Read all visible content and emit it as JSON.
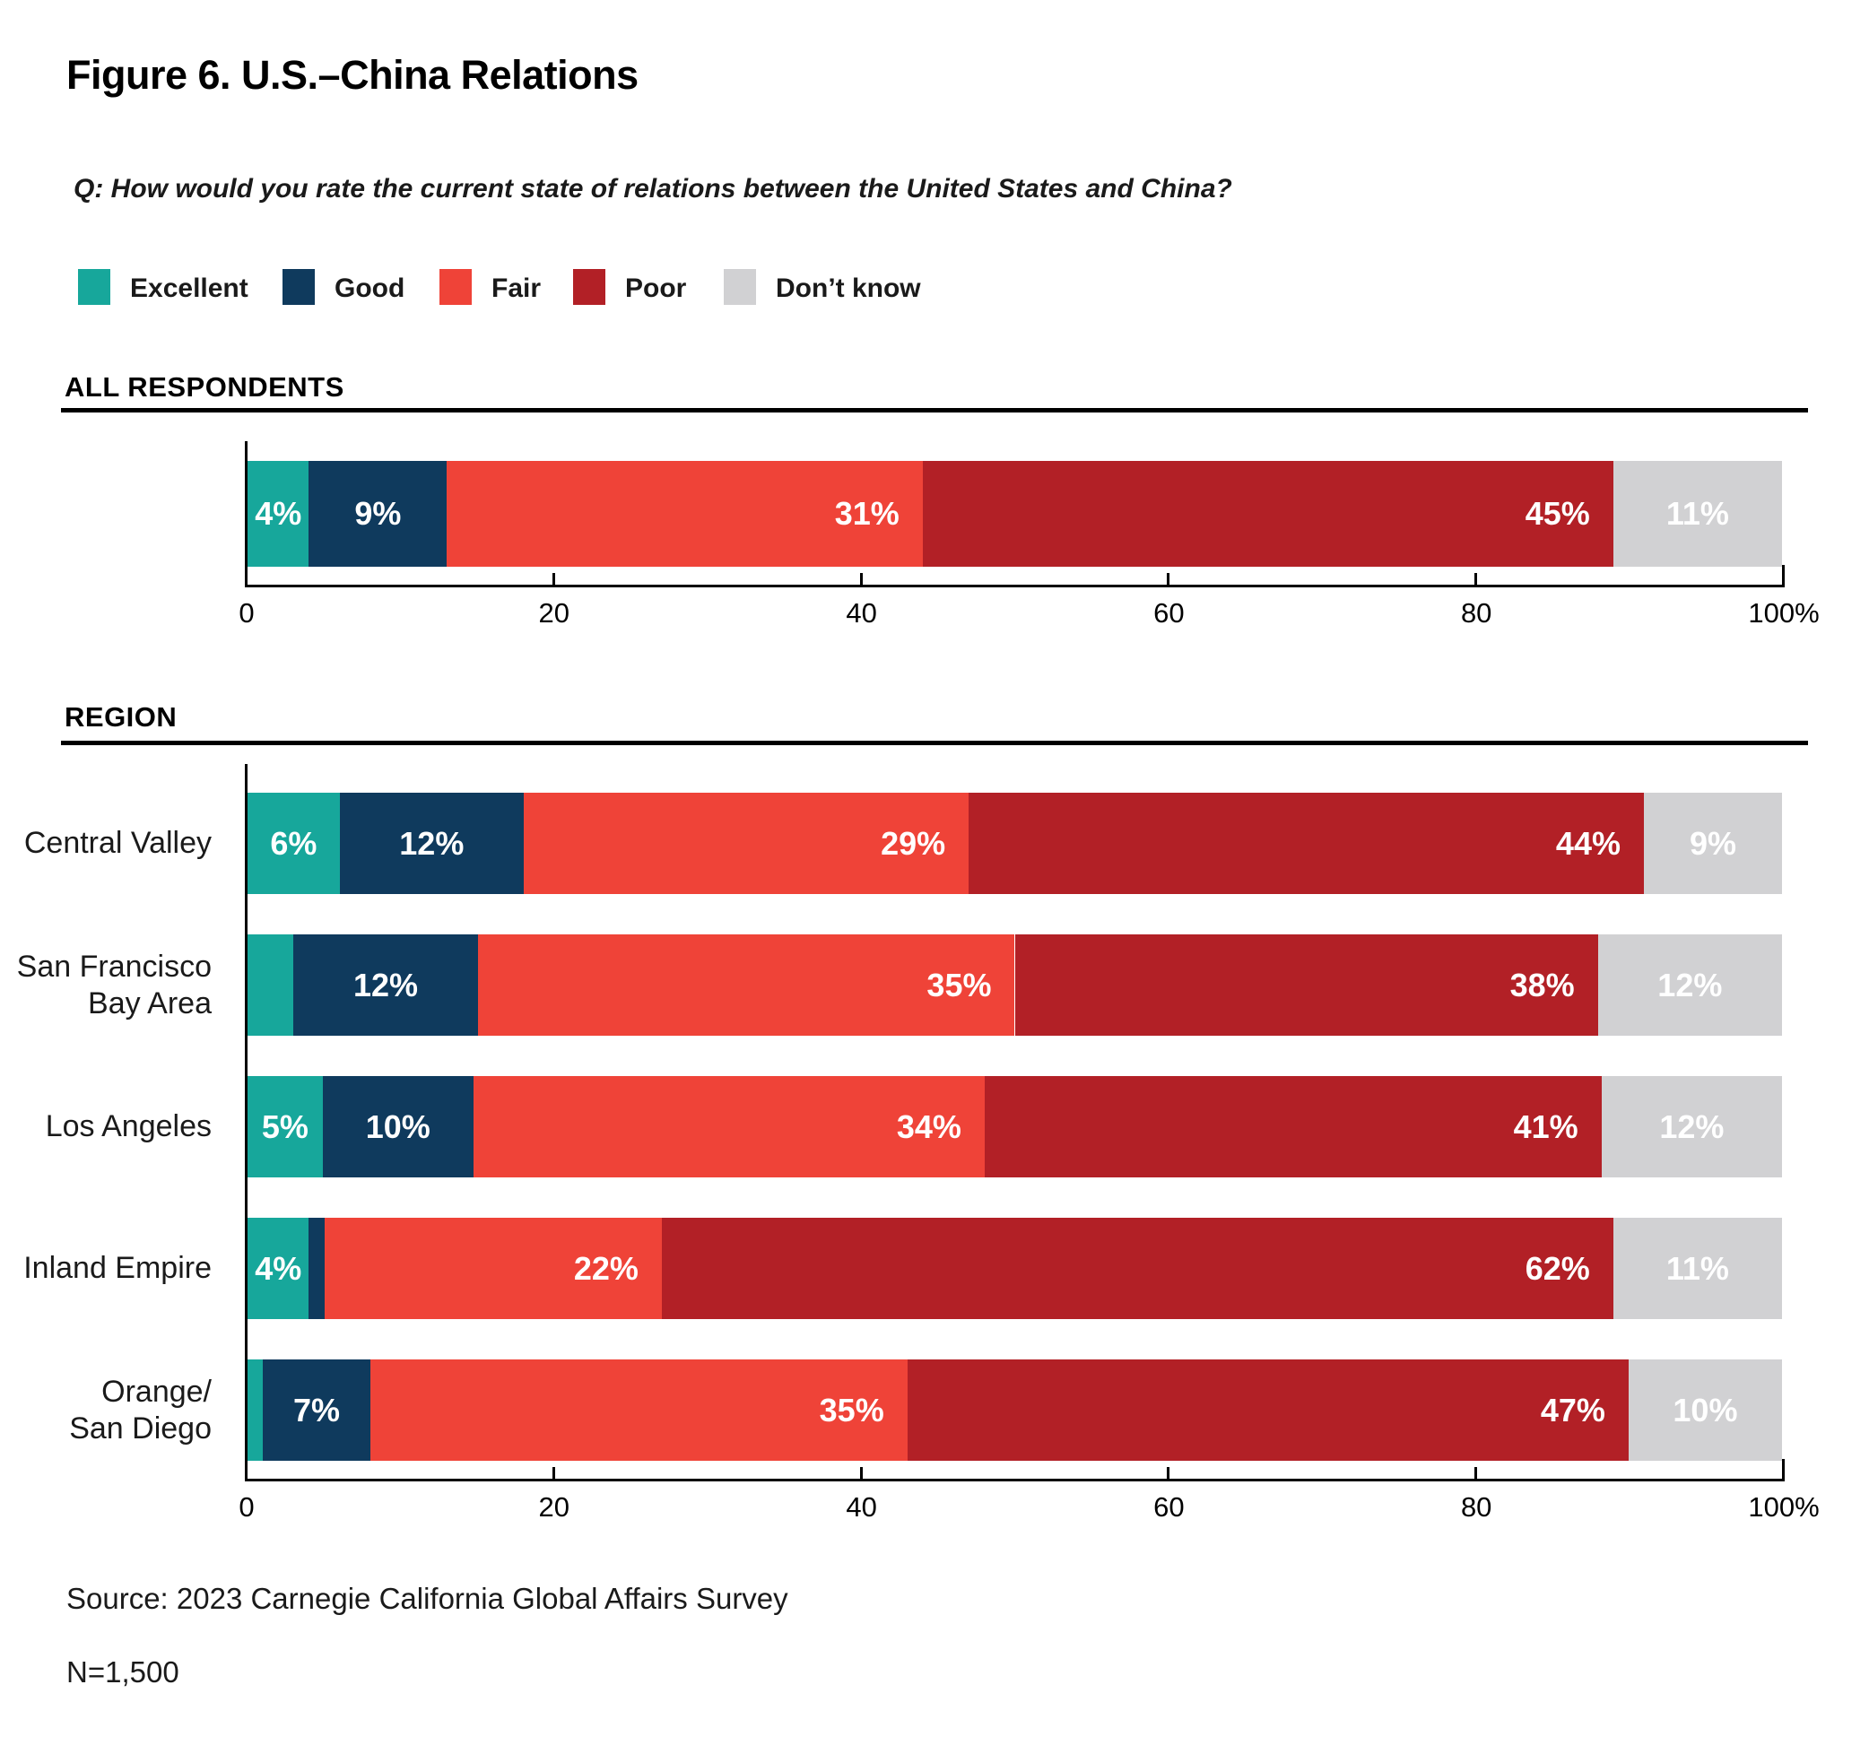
{
  "title": "Figure 6. U.S.–China Relations",
  "question": "Q: How would you rate the current state of relations between the United States and China?",
  "source": {
    "line1": "Source: 2023 Carnegie California Global Affairs Survey",
    "line2": "N=1,500"
  },
  "colors": {
    "excellent": "#17A79B",
    "good": "#0F3A5D",
    "fair": "#EF4338",
    "poor": "#B22026",
    "dont_know": "#D1D1D3",
    "text": "#1a1a1a",
    "rule": "#000000"
  },
  "chart_data": {
    "type": "bar",
    "subtype": "stacked-horizontal-percent",
    "categories": [
      "Excellent",
      "Good",
      "Fair",
      "Poor",
      "Don’t know"
    ],
    "colors": [
      "#17A79B",
      "#0F3A5D",
      "#EF4338",
      "#B22026",
      "#D1D1D3"
    ],
    "xlim": [
      0,
      100
    ],
    "x_ticks": [
      {
        "v": 0,
        "label": "0"
      },
      {
        "v": 20,
        "label": "20"
      },
      {
        "v": 40,
        "label": "40"
      },
      {
        "v": 60,
        "label": "60"
      },
      {
        "v": 80,
        "label": "80"
      },
      {
        "v": 100,
        "label": "100%"
      }
    ],
    "legend_position": "top",
    "grid": false,
    "groups": [
      {
        "section": "ALL RESPONDENTS",
        "rows": [
          {
            "label": "",
            "values": [
              4,
              9,
              31,
              45,
              11
            ],
            "display_labels": [
              "4%",
              "9%",
              "31%",
              "45%",
              "11%"
            ]
          }
        ]
      },
      {
        "section": "REGION",
        "rows": [
          {
            "label": "Central Valley",
            "values": [
              6,
              12,
              29,
              44,
              9
            ],
            "display_labels": [
              "6%",
              "12%",
              "29%",
              "44%",
              "9%"
            ]
          },
          {
            "label": "San Francisco\nBay Area",
            "values": [
              3,
              12,
              35,
              38,
              12
            ],
            "display_labels": [
              "",
              "12%",
              "35%",
              "38%",
              "12%"
            ]
          },
          {
            "label": "Los Angeles",
            "values": [
              5,
              10,
              34,
              41,
              12
            ],
            "display_labels": [
              "5%",
              "10%",
              "34%",
              "41%",
              "12%"
            ]
          },
          {
            "label": "Inland Empire",
            "values": [
              4,
              1,
              22,
              62,
              11
            ],
            "display_labels": [
              "4%",
              "",
              "22%",
              "62%",
              "11%"
            ]
          },
          {
            "label": "Orange/\nSan Diego",
            "values": [
              1,
              7,
              35,
              47,
              10
            ],
            "display_labels": [
              "",
              "7%",
              "35%",
              "47%",
              "10%"
            ]
          }
        ]
      }
    ]
  }
}
